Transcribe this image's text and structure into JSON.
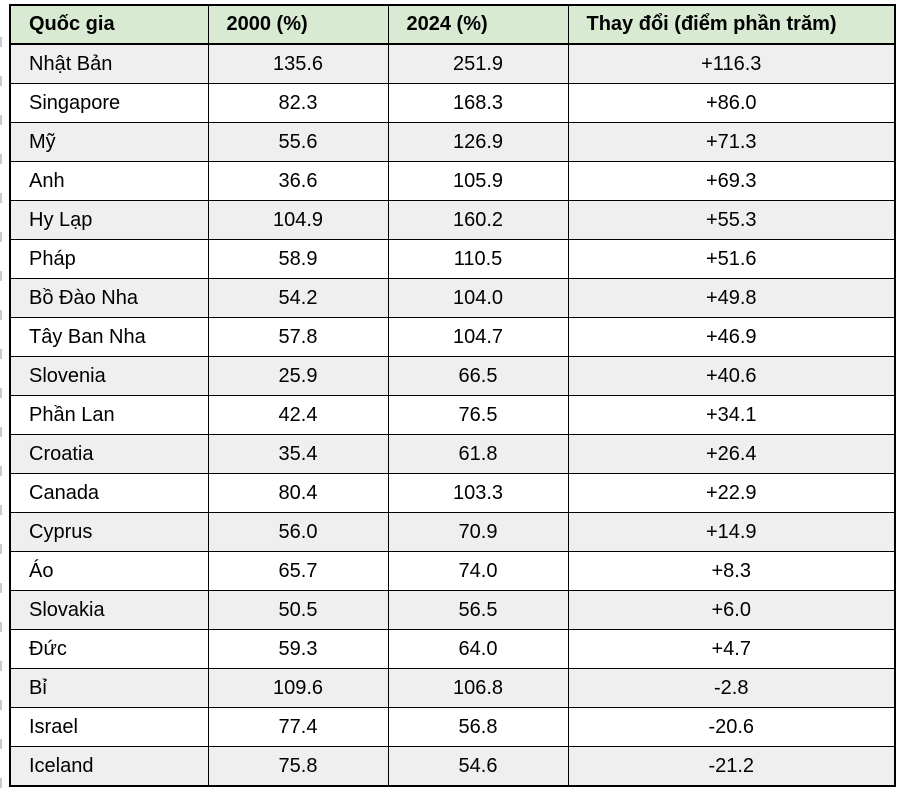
{
  "table": {
    "headers": [
      "Quốc gia",
      "2000 (%)",
      "2024 (%)",
      "Thay đổi (điểm phần trăm)"
    ],
    "rows": [
      {
        "country": "Nhật Bản",
        "y2000": "135.6",
        "y2024": "251.9",
        "change": "+116.3"
      },
      {
        "country": "Singapore",
        "y2000": "82.3",
        "y2024": "168.3",
        "change": "+86.0"
      },
      {
        "country": "Mỹ",
        "y2000": "55.6",
        "y2024": "126.9",
        "change": "+71.3"
      },
      {
        "country": "Anh",
        "y2000": "36.6",
        "y2024": "105.9",
        "change": "+69.3"
      },
      {
        "country": "Hy Lạp",
        "y2000": "104.9",
        "y2024": "160.2",
        "change": "+55.3"
      },
      {
        "country": "Pháp",
        "y2000": "58.9",
        "y2024": "110.5",
        "change": "+51.6"
      },
      {
        "country": "Bồ Đào Nha",
        "y2000": "54.2",
        "y2024": "104.0",
        "change": "+49.8"
      },
      {
        "country": "Tây Ban Nha",
        "y2000": "57.8",
        "y2024": "104.7",
        "change": "+46.9"
      },
      {
        "country": "Slovenia",
        "y2000": "25.9",
        "y2024": "66.5",
        "change": "+40.6"
      },
      {
        "country": "Phần Lan",
        "y2000": "42.4",
        "y2024": "76.5",
        "change": "+34.1"
      },
      {
        "country": "Croatia",
        "y2000": "35.4",
        "y2024": "61.8",
        "change": "+26.4"
      },
      {
        "country": "Canada",
        "y2000": "80.4",
        "y2024": "103.3",
        "change": "+22.9"
      },
      {
        "country": "Cyprus",
        "y2000": "56.0",
        "y2024": "70.9",
        "change": "+14.9"
      },
      {
        "country": "Áo",
        "y2000": "65.7",
        "y2024": "74.0",
        "change": "+8.3"
      },
      {
        "country": "Slovakia",
        "y2000": "50.5",
        "y2024": "56.5",
        "change": "+6.0"
      },
      {
        "country": "Đức",
        "y2000": "59.3",
        "y2024": "64.0",
        "change": "+4.7"
      },
      {
        "country": "Bỉ",
        "y2000": "109.6",
        "y2024": "106.8",
        "change": "-2.8"
      },
      {
        "country": "Israel",
        "y2000": "77.4",
        "y2024": "56.8",
        "change": "-20.6"
      },
      {
        "country": "Iceland",
        "y2000": "75.8",
        "y2024": "54.6",
        "change": "-21.2"
      }
    ]
  },
  "colors": {
    "header_bg": "#d9ead3",
    "stripe": "#efefef",
    "row_alt": "#ffffff",
    "border": "#000000",
    "text": "#000000"
  }
}
